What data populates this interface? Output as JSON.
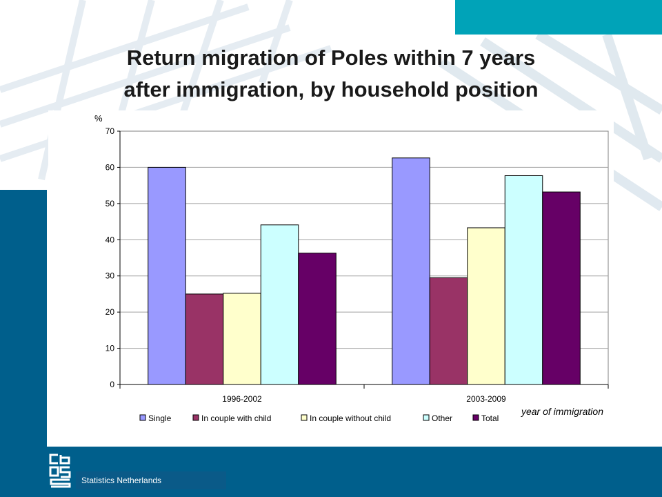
{
  "title_lines": [
    "Return migration of Poles within 7 years",
    "after immigration, by household position"
  ],
  "footer": {
    "org": "Statistics Netherlands"
  },
  "colors": {
    "accent_teal": "#00a3b8",
    "brand_blue": "#005f8c",
    "series": [
      "#9999ff",
      "#993366",
      "#ffffcc",
      "#ccffff",
      "#660066"
    ]
  },
  "chart_data": {
    "type": "bar",
    "title": "",
    "ylabel": "%",
    "xlabel": "year of immigration",
    "ylim": [
      0,
      70
    ],
    "yticks": [
      0,
      10,
      20,
      30,
      40,
      50,
      60,
      70
    ],
    "categories": [
      "1996-2002",
      "2003-2009"
    ],
    "series": [
      {
        "name": "Single",
        "values": [
          60,
          62.6
        ]
      },
      {
        "name": "In couple with child",
        "values": [
          25,
          29.5
        ]
      },
      {
        "name": "In couple without child",
        "values": [
          25.2,
          43.3
        ]
      },
      {
        "name": "Other",
        "values": [
          44.1,
          57.7
        ]
      },
      {
        "name": "Total",
        "values": [
          36.3,
          53.2
        ]
      }
    ],
    "grid": true,
    "legend_position": "bottom"
  }
}
